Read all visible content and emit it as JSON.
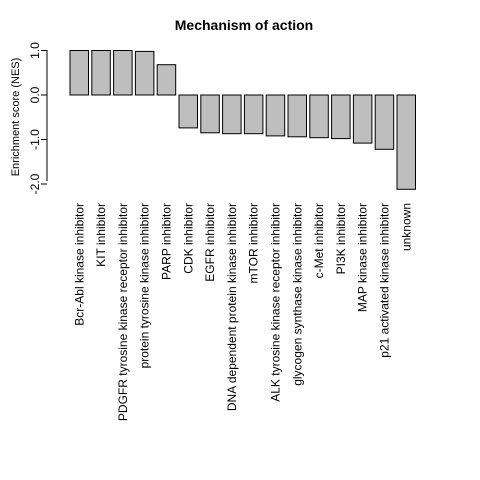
{
  "chart_data": {
    "type": "bar",
    "title": "Mechanism of action",
    "ylabel": "Enrichment score  (NES)",
    "xlabel": "",
    "ylim": [
      -2.15,
      1.05
    ],
    "yticks": [
      -2.0,
      -1.0,
      0.0,
      1.0
    ],
    "ytick_labels": [
      "-2.0",
      "-1.0",
      "0.0",
      "1.0"
    ],
    "categories": [
      "Bcr-Abl kinase inhibitor",
      "KIT inhibitor",
      "PDGFR tyrosine kinase receptor inhibitor",
      "protein tyrosine kinase inhibitor",
      "PARP inhibitor",
      "CDK inhibitor",
      "EGFR inhibitor",
      "DNA dependent protein kinase inhibitor",
      "mTOR inhibitor",
      "ALK tyrosine kinase receptor inhibitor",
      "glycogen synthase kinase inhibitor",
      "c-Met inhibitor",
      "PI3K inhibitor",
      "MAP kinase inhibitor",
      "p21 activated kinase inhibitor",
      "unknown"
    ],
    "values": [
      1.0,
      1.0,
      1.0,
      0.98,
      0.68,
      -0.74,
      -0.85,
      -0.87,
      -0.87,
      -0.92,
      -0.94,
      -0.96,
      -0.98,
      -1.08,
      -1.22,
      -2.12
    ],
    "bar_color": "#bebebe",
    "grid": false,
    "legend": "none"
  }
}
